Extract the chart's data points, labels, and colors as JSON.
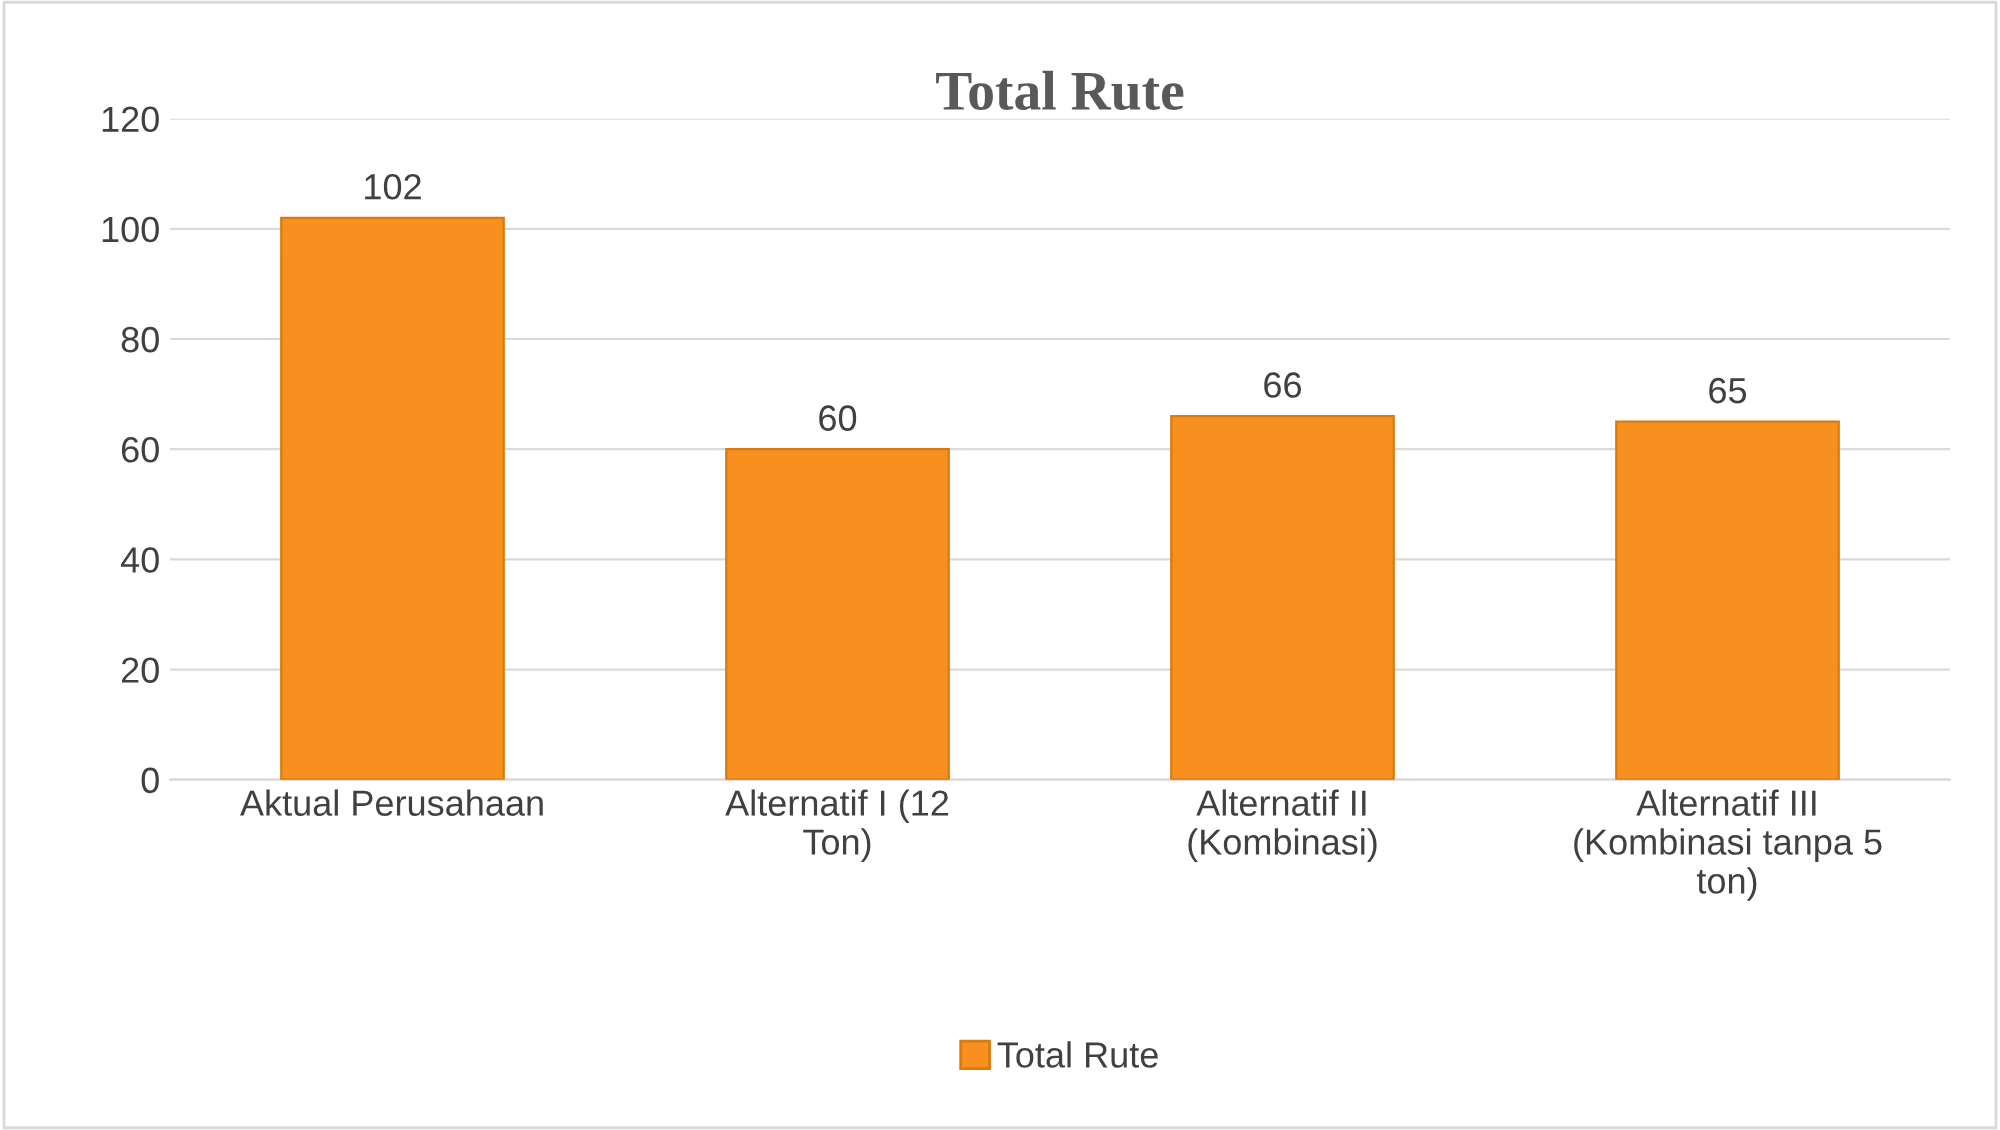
{
  "chart_data": {
    "type": "bar",
    "title": "Total Rute",
    "categories": [
      "Aktual Perusahaan",
      "Alternatif I (12 Ton)",
      "Alternatif II (Kombinasi)",
      "Alternatif III (Kombinasi tanpa 5 ton)"
    ],
    "series": [
      {
        "name": "Total Rute",
        "color": "#f7901e",
        "values": [
          102,
          60,
          66,
          65
        ]
      }
    ],
    "ylim": [
      0,
      120
    ],
    "yticks": [
      0,
      20,
      40,
      60,
      80,
      100,
      120
    ],
    "grid": "y",
    "legend": "bottom",
    "data_labels": true
  }
}
